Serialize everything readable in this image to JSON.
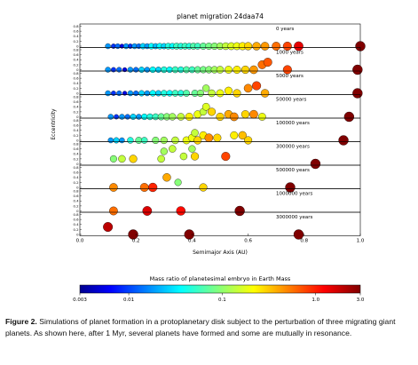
{
  "chart_data": {
    "type": "scatter",
    "title": "planet migration 24daa74",
    "xlabel": "Semimajor Axis (AU)",
    "ylabel": "Eccentricity",
    "xlim": [
      0.0,
      1.0
    ],
    "xticks": [
      "0.0",
      "0.2",
      "0.4",
      "0.6",
      "0.8",
      "1.0"
    ],
    "ylim": [
      0.0,
      0.8
    ],
    "yticks": [
      "0",
      "0.2",
      "0.4",
      "0.6",
      "0.8"
    ],
    "grid": false,
    "colorbar": {
      "label": "Mass ratio of planetesimal embryo in Earth Mass",
      "scale": "log",
      "range": [
        0.003,
        3.0
      ],
      "ticks": [
        "0.003",
        "0.01",
        "0.1",
        "1.0",
        "3.0"
      ]
    },
    "panels": [
      {
        "label": "0 years",
        "points": [
          [
            0.1,
            0,
            0.02
          ],
          [
            0.12,
            0,
            0.01
          ],
          [
            0.135,
            0,
            0.015
          ],
          [
            0.15,
            0,
            0.006
          ],
          [
            0.165,
            0,
            0.02
          ],
          [
            0.18,
            0,
            0.01
          ],
          [
            0.195,
            0,
            0.02
          ],
          [
            0.21,
            0,
            0.015
          ],
          [
            0.225,
            0,
            0.03
          ],
          [
            0.24,
            0,
            0.02
          ],
          [
            0.255,
            0,
            0.04
          ],
          [
            0.27,
            0,
            0.025
          ],
          [
            0.285,
            0,
            0.04
          ],
          [
            0.3,
            0,
            0.03
          ],
          [
            0.315,
            0,
            0.05
          ],
          [
            0.33,
            0,
            0.04
          ],
          [
            0.345,
            0,
            0.06
          ],
          [
            0.36,
            0,
            0.05
          ],
          [
            0.375,
            0,
            0.06
          ],
          [
            0.39,
            0,
            0.05
          ],
          [
            0.405,
            0,
            0.07
          ],
          [
            0.42,
            0,
            0.06
          ],
          [
            0.44,
            0,
            0.08
          ],
          [
            0.46,
            0,
            0.09
          ],
          [
            0.48,
            0,
            0.1
          ],
          [
            0.5,
            0,
            0.12
          ],
          [
            0.52,
            0,
            0.15
          ],
          [
            0.54,
            0,
            0.18
          ],
          [
            0.56,
            0,
            0.2
          ],
          [
            0.58,
            0,
            0.25
          ],
          [
            0.6,
            0,
            0.3
          ],
          [
            0.63,
            0,
            0.4
          ],
          [
            0.66,
            0,
            0.45
          ],
          [
            0.7,
            0,
            0.6
          ],
          [
            0.74,
            0,
            0.8
          ],
          [
            0.78,
            0,
            1.5
          ],
          [
            1.0,
            0,
            3.0
          ]
        ]
      },
      {
        "label": "1000 years",
        "points": [
          [
            0.1,
            0,
            0.02
          ],
          [
            0.12,
            0,
            0.01
          ],
          [
            0.14,
            0,
            0.015
          ],
          [
            0.16,
            0,
            0.006
          ],
          [
            0.18,
            0,
            0.02
          ],
          [
            0.2,
            0,
            0.015
          ],
          [
            0.22,
            0,
            0.03
          ],
          [
            0.24,
            0,
            0.02
          ],
          [
            0.26,
            0,
            0.04
          ],
          [
            0.28,
            0,
            0.03
          ],
          [
            0.3,
            0,
            0.05
          ],
          [
            0.32,
            0,
            0.04
          ],
          [
            0.34,
            0,
            0.06
          ],
          [
            0.36,
            0,
            0.05
          ],
          [
            0.38,
            0,
            0.07
          ],
          [
            0.4,
            0,
            0.06
          ],
          [
            0.42,
            0,
            0.08
          ],
          [
            0.44,
            0,
            0.09
          ],
          [
            0.46,
            0,
            0.1
          ],
          [
            0.48,
            0,
            0.12
          ],
          [
            0.5,
            0,
            0.15
          ],
          [
            0.53,
            0,
            0.2
          ],
          [
            0.56,
            0,
            0.25
          ],
          [
            0.59,
            0,
            0.3
          ],
          [
            0.62,
            0,
            0.45
          ],
          [
            0.65,
            0.2,
            0.6
          ],
          [
            0.67,
            0.3,
            0.7
          ],
          [
            0.74,
            0,
            0.8
          ],
          [
            0.99,
            0,
            3.0
          ]
        ]
      },
      {
        "label": "5000 years",
        "points": [
          [
            0.1,
            0,
            0.02
          ],
          [
            0.12,
            0,
            0.01
          ],
          [
            0.14,
            0,
            0.015
          ],
          [
            0.16,
            0,
            0.006
          ],
          [
            0.18,
            0,
            0.02
          ],
          [
            0.2,
            0,
            0.015
          ],
          [
            0.22,
            0,
            0.03
          ],
          [
            0.24,
            0,
            0.02
          ],
          [
            0.26,
            0,
            0.04
          ],
          [
            0.28,
            0,
            0.03
          ],
          [
            0.3,
            0,
            0.05
          ],
          [
            0.32,
            0,
            0.04
          ],
          [
            0.34,
            0,
            0.06
          ],
          [
            0.36,
            0,
            0.05
          ],
          [
            0.38,
            0,
            0.07
          ],
          [
            0.41,
            0,
            0.08
          ],
          [
            0.43,
            0,
            0.1
          ],
          [
            0.45,
            0.2,
            0.12
          ],
          [
            0.47,
            0,
            0.15
          ],
          [
            0.5,
            0,
            0.2
          ],
          [
            0.53,
            0.1,
            0.25
          ],
          [
            0.56,
            0,
            0.3
          ],
          [
            0.6,
            0.2,
            0.5
          ],
          [
            0.63,
            0.3,
            0.8
          ],
          [
            0.66,
            0,
            0.4
          ],
          [
            0.99,
            0,
            3.0
          ]
        ]
      },
      {
        "label": "50000 years",
        "points": [
          [
            0.11,
            0,
            0.02
          ],
          [
            0.13,
            0,
            0.01
          ],
          [
            0.15,
            0,
            0.02
          ],
          [
            0.17,
            0,
            0.015
          ],
          [
            0.19,
            0,
            0.03
          ],
          [
            0.21,
            0,
            0.02
          ],
          [
            0.23,
            0,
            0.04
          ],
          [
            0.25,
            0,
            0.05
          ],
          [
            0.27,
            0,
            0.06
          ],
          [
            0.29,
            0,
            0.08
          ],
          [
            0.31,
            0,
            0.1
          ],
          [
            0.33,
            0,
            0.12
          ],
          [
            0.36,
            0,
            0.15
          ],
          [
            0.39,
            0,
            0.25
          ],
          [
            0.42,
            0.1,
            0.2
          ],
          [
            0.44,
            0.2,
            0.15
          ],
          [
            0.45,
            0.4,
            0.18
          ],
          [
            0.47,
            0.2,
            0.3
          ],
          [
            0.5,
            0,
            0.3
          ],
          [
            0.53,
            0.1,
            0.4
          ],
          [
            0.55,
            0,
            0.5
          ],
          [
            0.59,
            0.1,
            0.3
          ],
          [
            0.62,
            0.1,
            0.5
          ],
          [
            0.65,
            0,
            0.2
          ],
          [
            0.96,
            0,
            3.0
          ]
        ]
      },
      {
        "label": "100000 years",
        "points": [
          [
            0.11,
            0,
            0.02
          ],
          [
            0.13,
            0,
            0.03
          ],
          [
            0.15,
            0,
            0.02
          ],
          [
            0.18,
            0,
            0.05
          ],
          [
            0.21,
            0,
            0.08
          ],
          [
            0.23,
            0,
            0.06
          ],
          [
            0.27,
            0,
            0.1
          ],
          [
            0.3,
            0,
            0.12
          ],
          [
            0.34,
            0,
            0.15
          ],
          [
            0.38,
            0,
            0.2
          ],
          [
            0.4,
            0.1,
            0.2
          ],
          [
            0.41,
            0.3,
            0.15
          ],
          [
            0.42,
            0,
            0.3
          ],
          [
            0.44,
            0.2,
            0.25
          ],
          [
            0.46,
            0.1,
            0.5
          ],
          [
            0.49,
            0.1,
            0.3
          ],
          [
            0.55,
            0.2,
            0.25
          ],
          [
            0.58,
            0.2,
            0.35
          ],
          [
            0.6,
            0,
            0.3
          ],
          [
            0.94,
            0,
            3.0
          ]
        ]
      },
      {
        "label": "300000 years",
        "points": [
          [
            0.12,
            0.2,
            0.1
          ],
          [
            0.15,
            0.2,
            0.15
          ],
          [
            0.19,
            0.2,
            0.3
          ],
          [
            0.29,
            0.2,
            0.15
          ],
          [
            0.3,
            0.5,
            0.12
          ],
          [
            0.33,
            0.6,
            0.15
          ],
          [
            0.37,
            0.3,
            0.15
          ],
          [
            0.4,
            0.6,
            0.12
          ],
          [
            0.41,
            0.3,
            0.3
          ],
          [
            0.52,
            0.3,
            0.8
          ],
          [
            0.84,
            0,
            3.0
          ]
        ]
      },
      {
        "label": "500000 years",
        "points": [
          [
            0.12,
            0,
            0.5
          ],
          [
            0.23,
            0,
            0.6
          ],
          [
            0.26,
            0,
            1.0
          ],
          [
            0.31,
            0.4,
            0.4
          ],
          [
            0.35,
            0.2,
            0.1
          ],
          [
            0.44,
            0,
            0.3
          ],
          [
            0.75,
            0,
            3.0
          ]
        ]
      },
      {
        "label": "1000000 years",
        "points": [
          [
            0.12,
            0,
            0.6
          ],
          [
            0.24,
            0,
            1.6
          ],
          [
            0.36,
            0,
            1.2
          ],
          [
            0.57,
            0,
            3.0
          ]
        ]
      },
      {
        "label": "3000000 years",
        "points": [
          [
            0.1,
            0.3,
            2.0
          ],
          [
            0.19,
            0,
            3.0
          ],
          [
            0.39,
            0,
            3.0
          ],
          [
            0.78,
            0,
            3.0
          ]
        ]
      }
    ]
  },
  "caption": {
    "label": "Figure 2.",
    "text": " Simulations of planet formation in a protoplanetary disk subject to the perturbation of three migrating giant planets. As shown here, after 1 Myr, several planets have formed and some are mutually in resonance."
  }
}
